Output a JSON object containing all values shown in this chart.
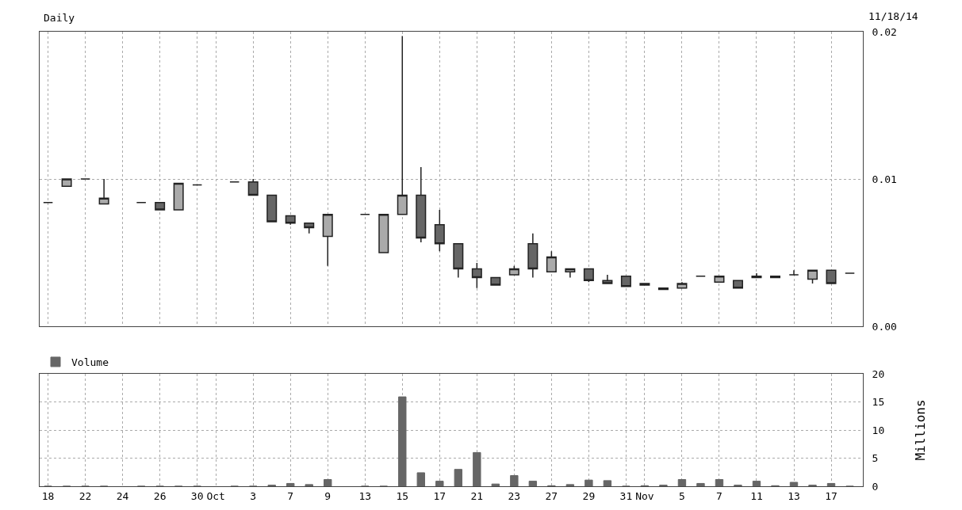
{
  "chart_data": [
    {
      "type": "candlestick",
      "title": "Daily",
      "annotations": [
        "11/18/14"
      ],
      "color": "#222222",
      "ohlc": [
        [
          0.0084,
          0.0084,
          0.0084,
          0.0084
        ],
        [
          0.0095,
          0.01,
          0.0095,
          0.01
        ],
        [
          0.01,
          0.01,
          0.01,
          0.01
        ],
        [
          0.0083,
          0.01,
          0.0083,
          0.0087
        ],
        null,
        [
          0.0084,
          0.0084,
          0.0084,
          0.0084
        ],
        [
          0.0084,
          0.0084,
          0.0079,
          0.0079
        ],
        [
          0.0079,
          0.0097,
          0.0079,
          0.0097
        ],
        [
          0.0096,
          0.0096,
          0.0096,
          0.0096
        ],
        null,
        [
          0.0098,
          0.0098,
          0.0098,
          0.0098
        ],
        [
          0.0098,
          0.01,
          0.0089,
          0.0089
        ],
        [
          0.0089,
          0.0089,
          0.0071,
          0.0071
        ],
        [
          0.0075,
          0.0075,
          0.0069,
          0.007
        ],
        [
          0.007,
          0.007,
          0.0063,
          0.0067
        ],
        [
          0.0061,
          0.0076,
          0.0041,
          0.0076
        ],
        null,
        [
          0.0076,
          0.0076,
          0.0076,
          0.0076
        ],
        [
          0.005,
          0.0076,
          0.005,
          0.0076
        ],
        [
          0.0076,
          0.0197,
          0.0076,
          0.0089
        ],
        [
          0.0089,
          0.0108,
          0.0057,
          0.006
        ],
        [
          0.0069,
          0.0079,
          0.0051,
          0.0056
        ],
        [
          0.0056,
          0.0056,
          0.0033,
          0.0039
        ],
        [
          0.0039,
          0.0043,
          0.0026,
          0.0033
        ],
        [
          0.0033,
          0.0033,
          0.0028,
          0.0028
        ],
        [
          0.0035,
          0.0041,
          0.0035,
          0.0039
        ],
        [
          0.0056,
          0.0063,
          0.0033,
          0.0039
        ],
        [
          0.0037,
          0.0051,
          0.0037,
          0.0047
        ],
        [
          0.0037,
          0.0039,
          0.0033,
          0.0039
        ],
        [
          0.0039,
          0.0039,
          0.003,
          0.0031
        ],
        [
          0.0031,
          0.0035,
          0.0029,
          0.0029
        ],
        [
          0.0034,
          0.0034,
          0.0027,
          0.0027
        ],
        [
          0.0028,
          0.0029,
          0.0028,
          0.0029
        ],
        [
          0.0026,
          0.0026,
          0.0025,
          0.0025
        ],
        [
          0.0026,
          0.003,
          0.0026,
          0.0029
        ],
        [
          0.0034,
          0.0034,
          0.0034,
          0.0034
        ],
        [
          0.003,
          0.0034,
          0.003,
          0.0034
        ],
        [
          0.0031,
          0.0031,
          0.0026,
          0.0026
        ],
        [
          0.0033,
          0.0036,
          0.0033,
          0.0034
        ],
        [
          0.0034,
          0.0034,
          0.0033,
          0.0033
        ],
        [
          0.0035,
          0.0038,
          0.0035,
          0.0035
        ],
        [
          0.0032,
          0.0038,
          0.0029,
          0.0038
        ],
        [
          0.0038,
          0.0038,
          0.0029,
          0.0029
        ],
        [
          0.0036,
          0.0036,
          0.0036,
          0.0036
        ]
      ],
      "ylim": [
        0,
        0.02
      ],
      "yticks": [
        {
          "value": 0,
          "label": "0.00"
        },
        0.01,
        0.02
      ],
      "grid": true,
      "tick_labels": "y"
    },
    {
      "type": "bar",
      "ylabel": "Millions",
      "legend": "top left",
      "categories": [
        "18",
        null,
        "22",
        null,
        "24",
        null,
        "26",
        null,
        "30",
        "Oct",
        null,
        "3",
        null,
        "7",
        null,
        "9",
        null,
        "13",
        null,
        "15",
        null,
        "17",
        null,
        "21",
        null,
        "23",
        null,
        "27",
        null,
        "29",
        null,
        "31",
        "Nov",
        null,
        "5",
        null,
        "7",
        null,
        "11",
        null,
        "13",
        null,
        "17",
        null
      ],
      "series": [
        {
          "name": "Volume",
          "color": "#666666",
          "values": [
            0,
            0,
            0,
            0,
            null,
            0,
            0,
            0,
            0,
            null,
            0,
            0,
            0.2,
            0.5,
            0.3,
            1.2,
            null,
            0,
            0,
            15.9,
            2.4,
            0.9,
            3.0,
            6.0,
            0.4,
            1.9,
            0.9,
            0.1,
            0.3,
            1.1,
            1.0,
            0,
            0.1,
            0.2,
            1.2,
            0.5,
            1.2,
            0.2,
            0.9,
            0.1,
            0.7,
            0.2,
            0.5,
            0
          ]
        }
      ],
      "ylim": [
        0,
        20
      ],
      "yticks": [
        0,
        5,
        10,
        15,
        20
      ],
      "grid": true
    }
  ]
}
